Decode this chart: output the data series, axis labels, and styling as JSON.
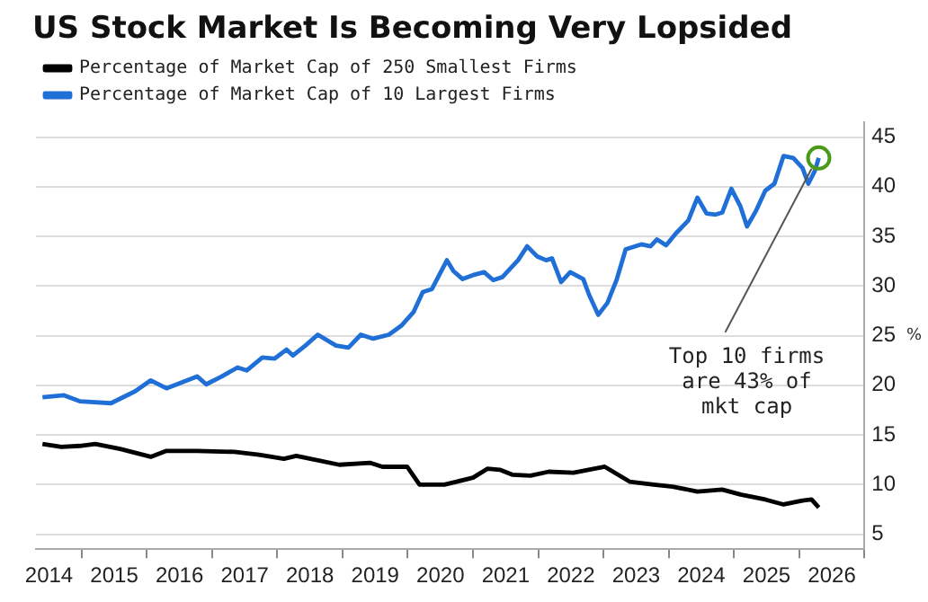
{
  "chart_data": {
    "type": "line",
    "title": "US Stock Market Is Becoming Very Lopsided",
    "ylabel": "%",
    "series": [
      {
        "name": "Percentage of Market Cap of 250 Smallest Firms",
        "color": "#000000",
        "x": [
          2014.4,
          2014.69,
          2014.97,
          2015.21,
          2015.59,
          2016.06,
          2016.3,
          2016.77,
          2017.34,
          2017.72,
          2018.1,
          2018.29,
          2018.95,
          2019.42,
          2019.61,
          2019.99,
          2020.18,
          2020.56,
          2020.75,
          2021.0,
          2021.22,
          2021.41,
          2021.6,
          2021.88,
          2022.16,
          2022.54,
          2023.02,
          2023.4,
          2023.77,
          2024.06,
          2024.44,
          2024.82,
          2025.1,
          2025.48,
          2025.76,
          2026.05,
          2026.19,
          2026.3
        ],
        "values": [
          14.1,
          13.8,
          13.9,
          14.1,
          13.6,
          12.8,
          13.4,
          13.4,
          13.3,
          13.0,
          12.6,
          12.9,
          12.0,
          12.2,
          11.8,
          11.8,
          10.0,
          10.0,
          10.3,
          10.7,
          11.6,
          11.5,
          11.0,
          10.9,
          11.3,
          11.2,
          11.8,
          10.3,
          10.0,
          9.8,
          9.3,
          9.5,
          9.0,
          8.5,
          8.0,
          8.4,
          8.5,
          7.7
        ]
      },
      {
        "name": "Percentage of Market Cap of 10 Largest Firms",
        "color": "#1f6fd6",
        "x": [
          2014.4,
          2014.73,
          2014.97,
          2015.45,
          2015.82,
          2016.06,
          2016.3,
          2016.77,
          2016.91,
          2017.15,
          2017.39,
          2017.53,
          2017.77,
          2017.96,
          2018.14,
          2018.24,
          2018.43,
          2018.62,
          2018.9,
          2019.09,
          2019.28,
          2019.47,
          2019.71,
          2019.9,
          2020.09,
          2020.23,
          2020.37,
          2020.6,
          2020.7,
          2020.84,
          2021.0,
          2021.17,
          2021.31,
          2021.45,
          2021.69,
          2021.83,
          2021.98,
          2022.12,
          2022.21,
          2022.35,
          2022.49,
          2022.69,
          2022.78,
          2022.92,
          2023.06,
          2023.2,
          2023.34,
          2023.58,
          2023.72,
          2023.82,
          2023.96,
          2024.11,
          2024.3,
          2024.44,
          2024.58,
          2024.72,
          2024.82,
          2024.96,
          2025.1,
          2025.2,
          2025.34,
          2025.48,
          2025.62,
          2025.76,
          2025.91,
          2026.05,
          2026.14,
          2026.24,
          2026.3
        ],
        "values": [
          18.8,
          19.0,
          18.4,
          18.2,
          19.4,
          20.5,
          19.7,
          20.9,
          20.1,
          20.9,
          21.8,
          21.5,
          22.8,
          22.7,
          23.6,
          23.0,
          24.0,
          25.1,
          24.0,
          23.8,
          25.1,
          24.7,
          25.1,
          26.0,
          27.4,
          29.4,
          29.7,
          32.6,
          31.5,
          30.7,
          31.1,
          31.4,
          30.6,
          30.9,
          32.6,
          34.0,
          33.0,
          32.6,
          32.8,
          30.4,
          31.4,
          30.7,
          29.1,
          27.1,
          28.3,
          30.6,
          33.7,
          34.2,
          34.0,
          34.7,
          34.1,
          35.3,
          36.6,
          38.9,
          37.3,
          37.2,
          37.4,
          39.8,
          38.0,
          36.0,
          37.6,
          39.6,
          40.3,
          43.1,
          42.9,
          41.9,
          40.3,
          41.6,
          42.9
        ]
      }
    ],
    "xlim": [
      2014.3,
      2027
    ],
    "xticks": [
      {
        "value": 2014.5,
        "label": "2014"
      },
      {
        "value": 2015,
        "label": null
      },
      {
        "value": 2015.5,
        "label": "2015"
      },
      {
        "value": 2016,
        "label": null
      },
      {
        "value": 2016.5,
        "label": "2016"
      },
      {
        "value": 2017,
        "label": null
      },
      {
        "value": 2017.5,
        "label": "2017"
      },
      {
        "value": 2018,
        "label": null
      },
      {
        "value": 2018.5,
        "label": "2018"
      },
      {
        "value": 2019,
        "label": null
      },
      {
        "value": 2019.5,
        "label": "2019"
      },
      {
        "value": 2020,
        "label": null
      },
      {
        "value": 2020.5,
        "label": "2020"
      },
      {
        "value": 2021,
        "label": null
      },
      {
        "value": 2021.5,
        "label": "2021"
      },
      {
        "value": 2022,
        "label": null
      },
      {
        "value": 2022.5,
        "label": "2022"
      },
      {
        "value": 2023,
        "label": null
      },
      {
        "value": 2023.5,
        "label": "2023"
      },
      {
        "value": 2024,
        "label": null
      },
      {
        "value": 2024.5,
        "label": "2024"
      },
      {
        "value": 2025,
        "label": null
      },
      {
        "value": 2025.5,
        "label": "2025"
      },
      {
        "value": 2026,
        "label": null
      },
      {
        "value": 2026.5,
        "label": "2026"
      },
      {
        "value": 2027,
        "label": null
      }
    ],
    "ylim": [
      3.5,
      46.5
    ],
    "yticks": [
      5,
      10,
      15,
      20,
      25,
      30,
      35,
      40,
      45
    ],
    "grid": "y",
    "legend": "top left",
    "marker": "none",
    "line_style": "solid",
    "annotations": [
      {
        "text": "Top 10 firms are 43% of mkt cap",
        "x": 2026.3,
        "y": 42.9
      }
    ]
  }
}
